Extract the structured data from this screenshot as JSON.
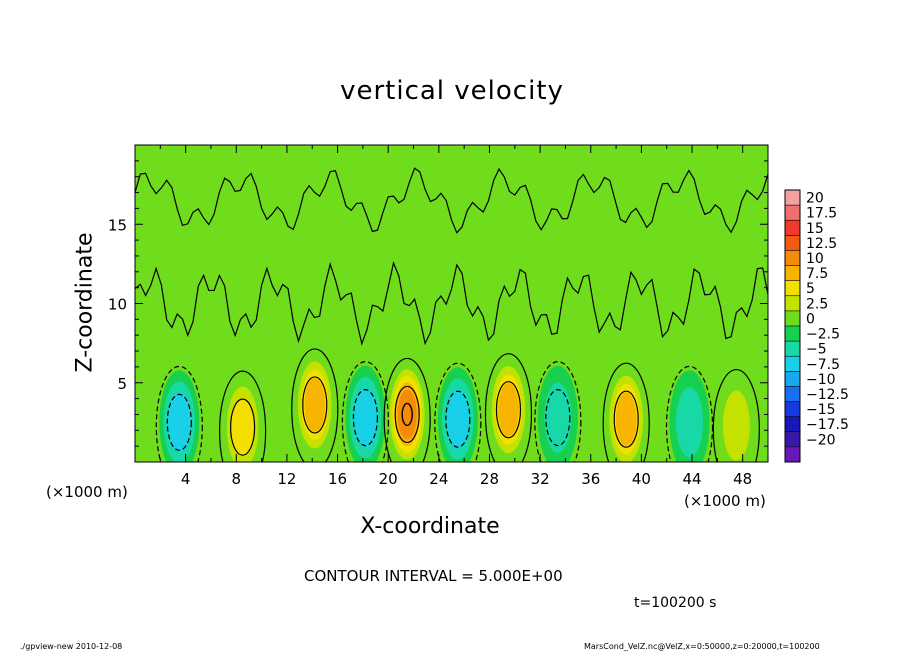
{
  "chart_data": {
    "type": "heatmap",
    "title": "vertical velocity",
    "xlabel": "X-coordinate",
    "ylabel": "Z-coordinate",
    "x_unit": "(×1000 m)",
    "y_unit": "(×1000 m)",
    "xlim": [
      0,
      50
    ],
    "ylim": [
      0,
      20
    ],
    "x_ticks": [
      4,
      8,
      12,
      16,
      20,
      24,
      28,
      32,
      36,
      40,
      44,
      48
    ],
    "y_ticks": [
      5,
      10,
      15
    ],
    "contour_interval_text": "CONTOUR INTERVAL = 5.000E+00",
    "time_text": "t=100200 s",
    "colorbar": {
      "levels": [
        20,
        17.5,
        15,
        12.5,
        10,
        7.5,
        5,
        2.5,
        0,
        -2.5,
        -5,
        -7.5,
        -10,
        -12.5,
        -15,
        -17.5,
        -20
      ],
      "colors": [
        "#f4a0a0",
        "#f26f6f",
        "#ee3b2b",
        "#f25a10",
        "#f58b0a",
        "#f7b400",
        "#f3df00",
        "#c3e200",
        "#6fdc1c",
        "#18d050",
        "#18d8a8",
        "#18d0e8",
        "#18a8f0",
        "#1870f0",
        "#1838e0",
        "#1818b8",
        "#3818a8",
        "#6a18b8"
      ]
    },
    "cells": [
      {
        "x": 3.5,
        "z": 2.5,
        "w": -6
      },
      {
        "x": 8.5,
        "z": 2.2,
        "w": 6
      },
      {
        "x": 14.2,
        "z": 3.6,
        "w": 9
      },
      {
        "x": 18.2,
        "z": 2.8,
        "w": -7
      },
      {
        "x": 21.5,
        "z": 3.0,
        "w": 11
      },
      {
        "x": 25.5,
        "z": 2.7,
        "w": -6
      },
      {
        "x": 29.5,
        "z": 3.3,
        "w": 9
      },
      {
        "x": 33.4,
        "z": 2.8,
        "w": -5
      },
      {
        "x": 38.8,
        "z": 2.7,
        "w": 8
      },
      {
        "x": 43.8,
        "z": 2.5,
        "w": -4
      },
      {
        "x": 47.5,
        "z": 2.3,
        "w": 4
      }
    ]
  },
  "footer": {
    "left": "./gpview-new   2010-12-08",
    "right": "MarsCond_VelZ.nc@VelZ,x=0:50000,z=0:20000,t=100200"
  }
}
